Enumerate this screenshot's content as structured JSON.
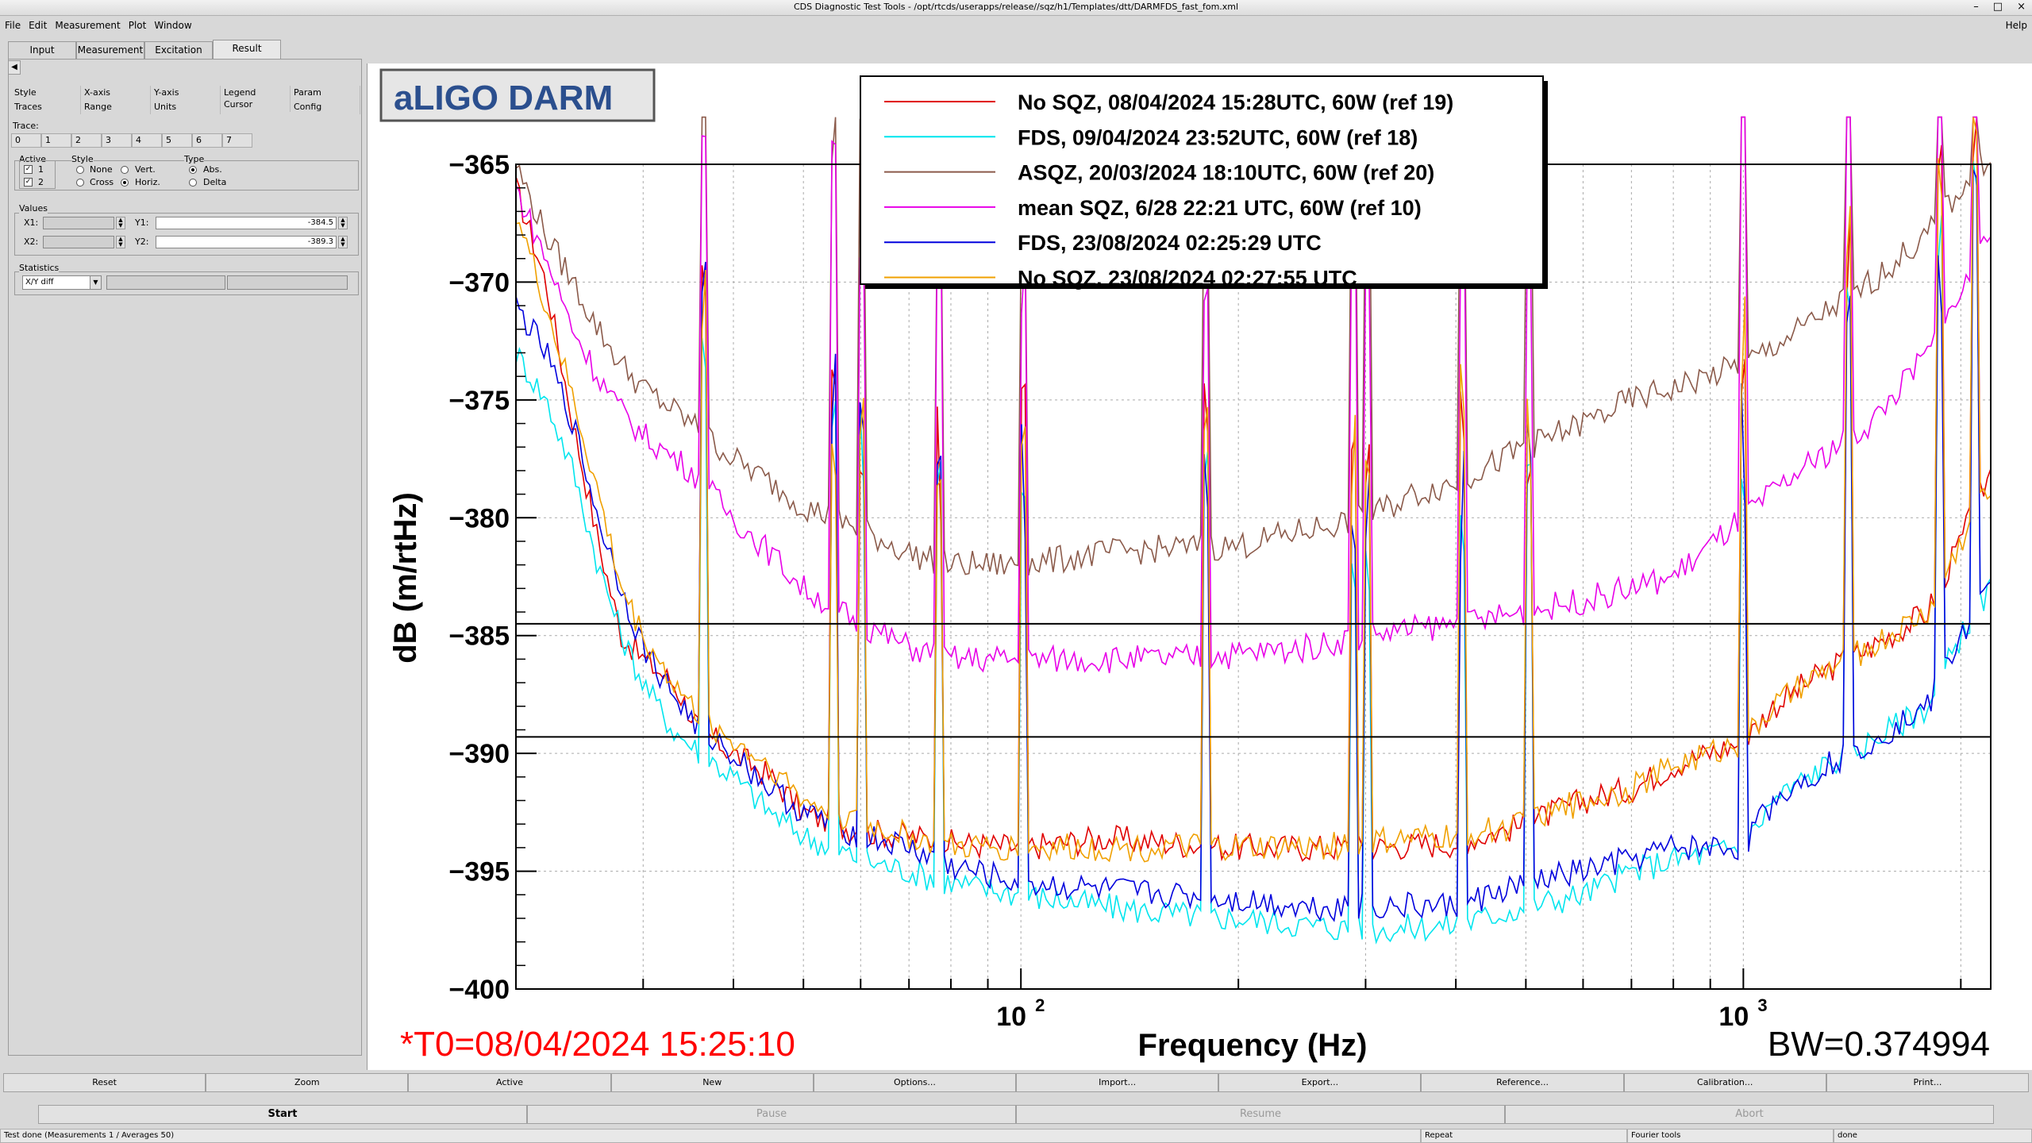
{
  "window": {
    "title": "CDS Diagnostic Test Tools - /opt/rtcds/userapps/release//sqz/h1/Templates/dtt/DARMFDS_fast_fom.xml",
    "controls": [
      "–",
      "□",
      "×"
    ]
  },
  "menu": {
    "items": [
      "File",
      "Edit",
      "Measurement",
      "Plot",
      "Window"
    ],
    "help": "Help"
  },
  "tabs": [
    "Input",
    "Measurement",
    "Excitation",
    "Result"
  ],
  "left_panel": {
    "subtabs_row1": [
      "Style",
      "X-axis",
      "Y-axis",
      "Legend",
      "Param"
    ],
    "subtabs_row2": [
      "Traces",
      "Range",
      "Units",
      "Cursor",
      "Config"
    ],
    "trace_label": "Trace:",
    "trace_buttons": [
      "0",
      "1",
      "2",
      "3",
      "4",
      "5",
      "6",
      "7"
    ],
    "active_label": "Active",
    "active_items": [
      "1",
      "2"
    ],
    "style_label": "Style",
    "style_options": [
      "None",
      "Vert.",
      "Cross",
      "Horiz."
    ],
    "type_label": "Type",
    "type_options": [
      "Abs.",
      "Delta"
    ],
    "values_label": "Values",
    "x1_label": "X1:",
    "x2_label": "X2:",
    "y1_label": "Y1:",
    "y2_label": "Y2:",
    "y1_value": "-384.5",
    "y2_value": "-389.3",
    "statistics_label": "Statistics",
    "statistics_value": "X/Y diff"
  },
  "chart_data": {
    "type": "line",
    "title": "aLIGO DARM",
    "xlabel": "Frequency (Hz)",
    "ylabel": "dB (m/rtHz)",
    "xscale": "log",
    "xlim": [
      20,
      2200
    ],
    "ylim": [
      -400,
      -365
    ],
    "yticks": [
      -365,
      -370,
      -375,
      -380,
      -385,
      -390,
      -395,
      -400
    ],
    "yticklabels": [
      "−365",
      "−370",
      "−375",
      "−380",
      "−385",
      "−390",
      "−395",
      "−400"
    ],
    "xticklabels": [
      {
        "value": 100,
        "base": "10",
        "exp": "2"
      },
      {
        "value": 1000,
        "base": "10",
        "exp": "3"
      }
    ],
    "grid": true,
    "legend_position": "top-center",
    "cursor_lines": [
      -384.5,
      -389.3
    ],
    "annotation_t0": "*T0=08/04/2024 15:25:10",
    "annotation_bw": "BW=0.374994",
    "series": [
      {
        "name": "No SQZ, 08/04/2024 15:28UTC, 60W (ref 19)",
        "color": "#e00000",
        "points": [
          [
            20,
            -366
          ],
          [
            22,
            -370
          ],
          [
            24,
            -376
          ],
          [
            26,
            -381
          ],
          [
            28,
            -385
          ],
          [
            30,
            -386
          ],
          [
            33,
            -387
          ],
          [
            36,
            -389
          ],
          [
            40,
            -390
          ],
          [
            45,
            -391
          ],
          [
            50,
            -392.5
          ],
          [
            55,
            -393
          ],
          [
            60,
            -393.3
          ],
          [
            70,
            -393.5
          ],
          [
            80,
            -393.8
          ],
          [
            100,
            -394
          ],
          [
            130,
            -393.6
          ],
          [
            160,
            -393.8
          ],
          [
            200,
            -394
          ],
          [
            250,
            -394
          ],
          [
            300,
            -394
          ],
          [
            400,
            -393.8
          ],
          [
            500,
            -393
          ],
          [
            600,
            -392
          ],
          [
            700,
            -391.5
          ],
          [
            800,
            -390.5
          ],
          [
            1000,
            -389.5
          ],
          [
            1100,
            -388
          ],
          [
            1300,
            -386.5
          ],
          [
            1500,
            -385.5
          ],
          [
            1800,
            -384
          ],
          [
            2000,
            -381
          ],
          [
            2200,
            -378
          ]
        ]
      },
      {
        "name": "FDS, 09/04/2024 23:52UTC, 60W (ref 18)",
        "color": "#00e5ee",
        "points": [
          [
            20,
            -373
          ],
          [
            22,
            -375
          ],
          [
            24,
            -378
          ],
          [
            26,
            -382
          ],
          [
            28,
            -385
          ],
          [
            30,
            -387
          ],
          [
            33,
            -389
          ],
          [
            36,
            -390
          ],
          [
            40,
            -391
          ],
          [
            45,
            -392.5
          ],
          [
            50,
            -393.5
          ],
          [
            60,
            -394.5
          ],
          [
            70,
            -395
          ],
          [
            80,
            -395.5
          ],
          [
            100,
            -396
          ],
          [
            130,
            -396.5
          ],
          [
            160,
            -396.8
          ],
          [
            200,
            -397
          ],
          [
            250,
            -397.3
          ],
          [
            300,
            -397.5
          ],
          [
            400,
            -397.3
          ],
          [
            500,
            -396.5
          ],
          [
            600,
            -396
          ],
          [
            700,
            -395
          ],
          [
            800,
            -394.5
          ],
          [
            1000,
            -394
          ],
          [
            1100,
            -392
          ],
          [
            1300,
            -390.5
          ],
          [
            1500,
            -389.5
          ],
          [
            1800,
            -388
          ],
          [
            2000,
            -385
          ],
          [
            2200,
            -383
          ]
        ]
      },
      {
        "name": "ASQZ, 20/03/2024 18:10UTC, 60W (ref 20)",
        "color": "#8b5a4a",
        "points": [
          [
            20,
            -365
          ],
          [
            22,
            -368
          ],
          [
            24,
            -370
          ],
          [
            26,
            -372
          ],
          [
            28,
            -373.5
          ],
          [
            30,
            -374.5
          ],
          [
            35,
            -376
          ],
          [
            40,
            -377.5
          ],
          [
            45,
            -378.5
          ],
          [
            50,
            -379.5
          ],
          [
            60,
            -380.5
          ],
          [
            70,
            -381.5
          ],
          [
            80,
            -382
          ],
          [
            100,
            -382
          ],
          [
            130,
            -381.5
          ],
          [
            160,
            -381.3
          ],
          [
            200,
            -381.2
          ],
          [
            250,
            -380.5
          ],
          [
            300,
            -380
          ],
          [
            350,
            -379
          ],
          [
            400,
            -378.5
          ],
          [
            500,
            -377
          ],
          [
            600,
            -376
          ],
          [
            700,
            -375
          ],
          [
            800,
            -374.5
          ],
          [
            1000,
            -373.5
          ],
          [
            1200,
            -372
          ],
          [
            1500,
            -370
          ],
          [
            1800,
            -368
          ],
          [
            2000,
            -366
          ],
          [
            2200,
            -364.5
          ]
        ]
      },
      {
        "name": "mean SQZ, 6/28 22:21 UTC, 60W (ref 10)",
        "color": "#e800e8",
        "points": [
          [
            20,
            -366
          ],
          [
            22,
            -369
          ],
          [
            24,
            -372
          ],
          [
            26,
            -374
          ],
          [
            28,
            -375.5
          ],
          [
            30,
            -376.5
          ],
          [
            35,
            -378
          ],
          [
            40,
            -380
          ],
          [
            45,
            -381.5
          ],
          [
            50,
            -383
          ],
          [
            60,
            -384.5
          ],
          [
            70,
            -385.5
          ],
          [
            80,
            -386
          ],
          [
            100,
            -386
          ],
          [
            130,
            -386
          ],
          [
            160,
            -386
          ],
          [
            200,
            -385.8
          ],
          [
            250,
            -385.5
          ],
          [
            300,
            -385
          ],
          [
            400,
            -384.5
          ],
          [
            500,
            -384
          ],
          [
            600,
            -383.5
          ],
          [
            700,
            -383
          ],
          [
            800,
            -382.5
          ],
          [
            1000,
            -380
          ],
          [
            1200,
            -378
          ],
          [
            1500,
            -376
          ],
          [
            1800,
            -373
          ],
          [
            2000,
            -370.5
          ],
          [
            2200,
            -368
          ]
        ]
      },
      {
        "name": "FDS, 23/08/2024 02:25:29 UTC",
        "color": "#0000dd",
        "points": [
          [
            20,
            -371
          ],
          [
            22,
            -373
          ],
          [
            24,
            -376
          ],
          [
            26,
            -380
          ],
          [
            28,
            -383
          ],
          [
            30,
            -385.5
          ],
          [
            33,
            -387.5
          ],
          [
            36,
            -389
          ],
          [
            40,
            -390
          ],
          [
            45,
            -391.5
          ],
          [
            50,
            -392.5
          ],
          [
            60,
            -393.5
          ],
          [
            70,
            -394
          ],
          [
            80,
            -394.8
          ],
          [
            100,
            -395.5
          ],
          [
            130,
            -395.8
          ],
          [
            160,
            -396
          ],
          [
            200,
            -396.2
          ],
          [
            250,
            -396.5
          ],
          [
            300,
            -396.5
          ],
          [
            400,
            -396.5
          ],
          [
            500,
            -395.5
          ],
          [
            600,
            -395
          ],
          [
            700,
            -394.5
          ],
          [
            800,
            -394
          ],
          [
            1000,
            -394
          ],
          [
            1100,
            -392
          ],
          [
            1300,
            -390.5
          ],
          [
            1500,
            -389.5
          ],
          [
            1800,
            -388
          ],
          [
            2000,
            -385
          ],
          [
            2200,
            -383
          ]
        ]
      },
      {
        "name": "No SQZ, 23/08/2024 02:27:55 UTC",
        "color": "#f0a000",
        "points": [
          [
            20,
            -367
          ],
          [
            22,
            -371
          ],
          [
            24,
            -375
          ],
          [
            26,
            -379
          ],
          [
            28,
            -383
          ],
          [
            30,
            -385
          ],
          [
            33,
            -387
          ],
          [
            36,
            -388.5
          ],
          [
            40,
            -389.5
          ],
          [
            45,
            -390.5
          ],
          [
            50,
            -392
          ],
          [
            60,
            -393
          ],
          [
            70,
            -393.5
          ],
          [
            80,
            -394
          ],
          [
            100,
            -394
          ],
          [
            130,
            -394
          ],
          [
            160,
            -394
          ],
          [
            200,
            -394
          ],
          [
            250,
            -394
          ],
          [
            300,
            -393.8
          ],
          [
            400,
            -393.5
          ],
          [
            500,
            -393
          ],
          [
            600,
            -392
          ],
          [
            700,
            -391.5
          ],
          [
            800,
            -390.5
          ],
          [
            1000,
            -389.5
          ],
          [
            1100,
            -388
          ],
          [
            1300,
            -386.5
          ],
          [
            1500,
            -385.5
          ],
          [
            1800,
            -384
          ],
          [
            2000,
            -381
          ],
          [
            2200,
            -378.5
          ]
        ]
      }
    ],
    "line_spikes": [
      36.5,
      55,
      60,
      77,
      101,
      180,
      289,
      302,
      410,
      505,
      1001,
      1400,
      1870,
      2100
    ]
  },
  "bottom_buttons": [
    "Reset",
    "Zoom",
    "Active",
    "New",
    "Options...",
    "Import...",
    "Export...",
    "Reference...",
    "Calibration...",
    "Print..."
  ],
  "control_buttons": [
    "Start",
    "Pause",
    "Resume",
    "Abort"
  ],
  "status": {
    "main": "Test done (Measurements 1 / Averages 50)",
    "repeat": "Repeat",
    "tool": "Fourier tools",
    "state": "done"
  }
}
